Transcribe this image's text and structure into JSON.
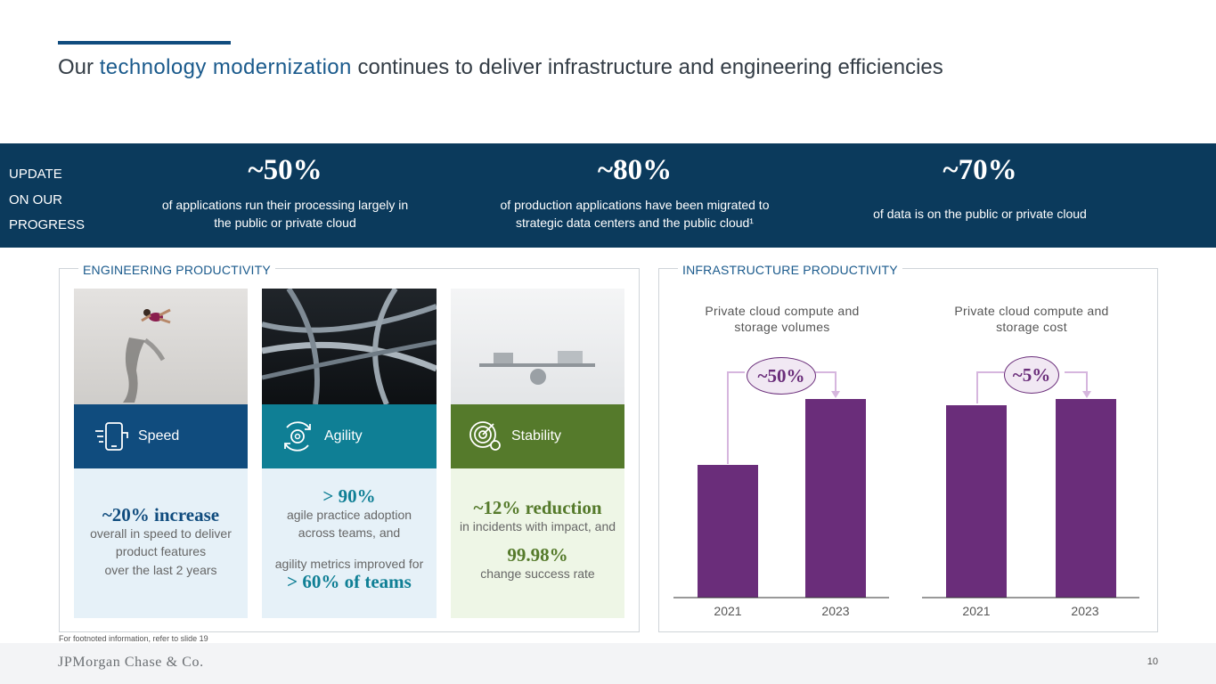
{
  "title": {
    "prefix": "Our ",
    "highlight": "technology modernization",
    "suffix": " continues to deliver infrastructure and engineering efficiencies"
  },
  "progress": {
    "label_lines": [
      "UPDATE",
      "ON OUR",
      "PROGRESS"
    ],
    "stats": [
      {
        "value": "~50%",
        "desc_lines": [
          "of applications run their processing largely in",
          "the public or private cloud"
        ]
      },
      {
        "value": "~80%",
        "desc_lines": [
          "of production applications have been migrated to",
          "strategic data centers and the public cloud¹"
        ]
      },
      {
        "value": "~70%",
        "desc_lines": [
          "of data is on the public or private cloud"
        ]
      }
    ]
  },
  "engineering": {
    "label": "ENGINEERING PRODUCTIVITY",
    "cards": [
      {
        "name": "Speed",
        "icon": "mobile-speed-icon",
        "color": "#104c7e",
        "bg": "#e6f1f8",
        "headline": "~20% increase",
        "lines": [
          "overall in speed to deliver",
          "product features",
          "over the last 2 years"
        ]
      },
      {
        "name": "Agility",
        "icon": "gear-cycle-icon",
        "color": "#0f7f95",
        "bg": "#e6f1f8",
        "headline": "> 90%",
        "lines": [
          "agile practice adoption",
          "across teams, and"
        ],
        "line2": "agility metrics improved for",
        "headline2": "> 60% of teams"
      },
      {
        "name": "Stability",
        "icon": "target-gear-icon",
        "color": "#557a2b",
        "bg": "#eef6e6",
        "headline": "~12% reduction",
        "lines": [
          "in incidents with impact, and"
        ],
        "headline2": "99.98%",
        "line2": "change success rate"
      }
    ]
  },
  "infrastructure": {
    "label": "INFRASTRUCTURE PRODUCTIVITY"
  },
  "chart_data": [
    {
      "type": "bar",
      "title": "Private cloud compute and storage volumes",
      "categories": [
        "2021",
        "2023"
      ],
      "values": [
        0.66,
        1.0
      ],
      "change_label": "~50%",
      "color": "#6a2d7a"
    },
    {
      "type": "bar",
      "title": "Private cloud compute and storage cost",
      "categories": [
        "2021",
        "2023"
      ],
      "values": [
        0.97,
        1.0
      ],
      "change_label": "~5%",
      "color": "#6a2d7a"
    }
  ],
  "footer": {
    "footnote": "For footnoted information, refer to slide 19",
    "logo": "JPMorgan Chase & Co.",
    "page": "10"
  }
}
